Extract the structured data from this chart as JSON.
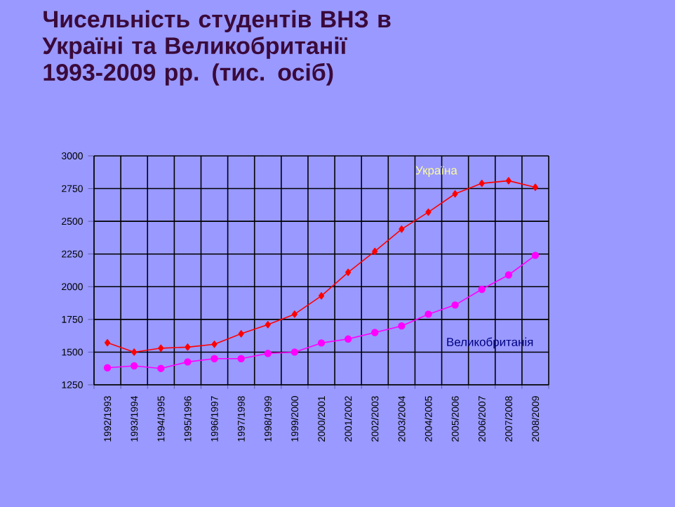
{
  "chart_data": {
    "type": "line",
    "title": "Чисельність студентів ВНЗ в Україні та Великобританії",
    "subtitle": "1993-2009 рр. (тис. осіб)",
    "categories": [
      "1992/1993",
      "1993/1994",
      "1994/1995",
      "1995/1996",
      "1996/1997",
      "1997/1998",
      "1998/1999",
      "1999/2000",
      "2000/2001",
      "2001/2002",
      "2002/2003",
      "2003/2004",
      "2004/2005",
      "2005/2006",
      "2006/2007",
      "2007/2008",
      "2008/2009"
    ],
    "series": [
      {
        "name": "Україна",
        "color": "#ff0000",
        "marker": "diamond",
        "values": [
          1572,
          1500,
          1530,
          1538,
          1560,
          1640,
          1710,
          1790,
          1930,
          2110,
          2270,
          2440,
          2570,
          2710,
          2790,
          2810,
          2760
        ]
      },
      {
        "name": "Великобританія",
        "color": "#ff00ff",
        "marker": "circle",
        "values": [
          1380,
          1395,
          1375,
          1425,
          1450,
          1450,
          1490,
          1500,
          1570,
          1600,
          1650,
          1700,
          1790,
          1860,
          1980,
          2090,
          2240
        ]
      }
    ],
    "ylim": [
      1250,
      3000
    ],
    "yticks": [
      1250,
      1500,
      1750,
      2000,
      2250,
      2500,
      2750,
      3000
    ],
    "grid": true,
    "legend": false
  }
}
